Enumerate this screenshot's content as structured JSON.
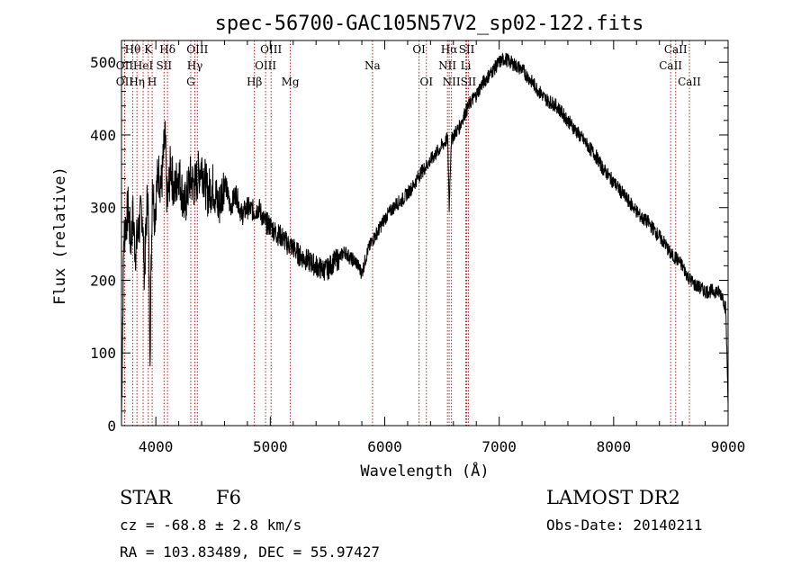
{
  "chart_data": {
    "type": "line",
    "title": "spec-56700-GAC105N57V2_sp02-122.fits",
    "xlabel": "Wavelength (Å)",
    "ylabel": "Flux (relative)",
    "xlim": [
      3700,
      9000
    ],
    "ylim": [
      0,
      530
    ],
    "x_ticks": [
      4000,
      5000,
      6000,
      7000,
      8000,
      9000
    ],
    "y_ticks": [
      0,
      100,
      200,
      300,
      400,
      500
    ],
    "grid": false,
    "line_color": "#000000",
    "marker_color": "#b22222",
    "series": [
      {
        "x": [
          3700,
          3720,
          3740,
          3760,
          3780,
          3800,
          3820,
          3850,
          3880,
          3900,
          3930,
          3950,
          3970,
          3990,
          4020,
          4050,
          4080,
          4100,
          4130,
          4160,
          4200,
          4250,
          4300,
          4340,
          4400,
          4450,
          4500,
          4550,
          4600,
          4650,
          4700,
          4750,
          4800,
          4861,
          4900,
          4950,
          5000,
          5050,
          5100,
          5150,
          5200,
          5250,
          5300,
          5350,
          5400,
          5450,
          5500,
          5550,
          5600,
          5650,
          5700,
          5750,
          5800,
          5850,
          5893,
          5950,
          6000,
          6050,
          6100,
          6150,
          6200,
          6250,
          6300,
          6350,
          6400,
          6450,
          6500,
          6550,
          6563,
          6580,
          6600,
          6650,
          6700,
          6750,
          6800,
          6850,
          6900,
          6950,
          7000,
          7050,
          7100,
          7150,
          7200,
          7250,
          7300,
          7350,
          7400,
          7450,
          7500,
          7550,
          7600,
          7650,
          7700,
          7750,
          7800,
          7850,
          7900,
          7950,
          8000,
          8050,
          8100,
          8150,
          8200,
          8250,
          8300,
          8350,
          8400,
          8450,
          8500,
          8550,
          8600,
          8650,
          8700,
          8750,
          8800,
          8850,
          8900,
          8950,
          8980,
          9000
        ],
        "y": [
          10,
          260,
          280,
          300,
          250,
          290,
          240,
          270,
          300,
          210,
          330,
          110,
          340,
          290,
          350,
          330,
          400,
          300,
          360,
          320,
          350,
          300,
          340,
          330,
          360,
          320,
          330,
          300,
          340,
          300,
          320,
          290,
          300,
          295,
          300,
          280,
          275,
          265,
          260,
          250,
          245,
          235,
          230,
          225,
          220,
          215,
          215,
          225,
          230,
          240,
          230,
          225,
          210,
          240,
          255,
          270,
          285,
          295,
          305,
          310,
          320,
          330,
          345,
          355,
          365,
          375,
          385,
          395,
          300,
          390,
          400,
          410,
          430,
          445,
          455,
          470,
          480,
          490,
          500,
          505,
          500,
          495,
          490,
          480,
          470,
          460,
          450,
          445,
          440,
          430,
          420,
          410,
          400,
          390,
          380,
          370,
          355,
          345,
          335,
          325,
          315,
          305,
          295,
          285,
          280,
          270,
          260,
          250,
          235,
          230,
          220,
          205,
          195,
          190,
          185,
          185,
          185,
          180,
          160,
          30
        ]
      }
    ],
    "lines": [
      {
        "label": "OII",
        "x": 3727,
        "row": 2
      },
      {
        "label": "Hθ",
        "x": 3798,
        "row": 1
      },
      {
        "label": "OII",
        "x": 3727,
        "row": 3
      },
      {
        "label": "HeI",
        "x": 3889,
        "row": 2
      },
      {
        "label": "Hη",
        "x": 3835,
        "row": 3
      },
      {
        "label": "K",
        "x": 3934,
        "row": 1
      },
      {
        "label": "H",
        "x": 3968,
        "row": 3
      },
      {
        "label": "SII",
        "x": 4072,
        "row": 2
      },
      {
        "label": "Hδ",
        "x": 4102,
        "row": 1
      },
      {
        "label": "G",
        "x": 4305,
        "row": 3
      },
      {
        "label": "Hγ",
        "x": 4341,
        "row": 2
      },
      {
        "label": "OIII",
        "x": 4363,
        "row": 1
      },
      {
        "label": "Hβ",
        "x": 4861,
        "row": 3
      },
      {
        "label": "OIII",
        "x": 4959,
        "row": 2
      },
      {
        "label": "OIII",
        "x": 5007,
        "row": 1
      },
      {
        "label": "Mg",
        "x": 5175,
        "row": 3
      },
      {
        "label": "Na",
        "x": 5893,
        "row": 2
      },
      {
        "label": "OI",
        "x": 6300,
        "row": 1
      },
      {
        "label": "OI",
        "x": 6364,
        "row": 3
      },
      {
        "label": "NII",
        "x": 6548,
        "row": 2
      },
      {
        "label": "Hα",
        "x": 6563,
        "row": 1
      },
      {
        "label": "NII",
        "x": 6583,
        "row": 3
      },
      {
        "label": "Li",
        "x": 6708,
        "row": 2
      },
      {
        "label": "SII",
        "x": 6716,
        "row": 1
      },
      {
        "label": "SII",
        "x": 6731,
        "row": 3
      },
      {
        "label": "CaII",
        "x": 8498,
        "row": 2
      },
      {
        "label": "CaII",
        "x": 8542,
        "row": 1
      },
      {
        "label": "CaII",
        "x": 8662,
        "row": 3
      }
    ]
  },
  "info": {
    "class": "STAR",
    "subclass": "F6",
    "cz": "cz = -68.8 ± 2.8 km/s",
    "coords": "RA = 103.83489, DEC =  55.97427",
    "survey": "LAMOST DR2",
    "obs_date": "Obs-Date: 20140211"
  }
}
